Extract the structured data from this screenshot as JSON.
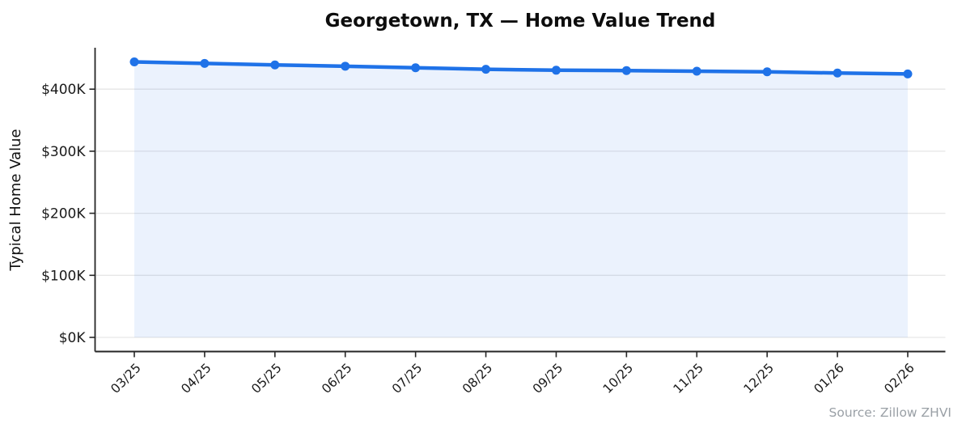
{
  "figure": {
    "title": "Georgetown, TX — Home Value Trend",
    "source_note": "Source: Zillow ZHVI"
  },
  "chart_data": {
    "type": "line",
    "title": "Georgetown, TX — Home Value Trend",
    "xlabel": "",
    "ylabel": "Typical Home Value",
    "categories": [
      "03/25",
      "04/25",
      "05/25",
      "06/25",
      "07/25",
      "08/25",
      "09/25",
      "10/25",
      "11/25",
      "12/25",
      "01/26",
      "02/26"
    ],
    "series": [
      {
        "name": "Typical Home Value (USD)",
        "values": [
          444000,
          441500,
          439000,
          437000,
          434500,
          432000,
          430500,
          430000,
          429000,
          428000,
          426000,
          424500
        ]
      }
    ],
    "ytick_values": [
      0,
      100000,
      200000,
      300000,
      400000
    ],
    "ytick_labels": [
      "$0K",
      "$100K",
      "$200K",
      "$300K",
      "$400K"
    ],
    "ylim": [
      0,
      460000
    ],
    "grid": "horizontal",
    "legend": "none",
    "marker": "circle",
    "area_fill": true,
    "x_tick_rotation_deg": 45,
    "annotations": [
      "Source: Zillow ZHVI"
    ],
    "colors": {
      "line": "#1f72e8",
      "marker": "#1f72e8",
      "area_fill_rgba": "rgba(31,114,232,0.09)",
      "grid": "#e6e6e6",
      "spine": "#262626",
      "tick": "#262626",
      "title": "#0d0d0d",
      "tick_text": "#1a1a1a",
      "source_text": "#9aa0a6"
    }
  }
}
